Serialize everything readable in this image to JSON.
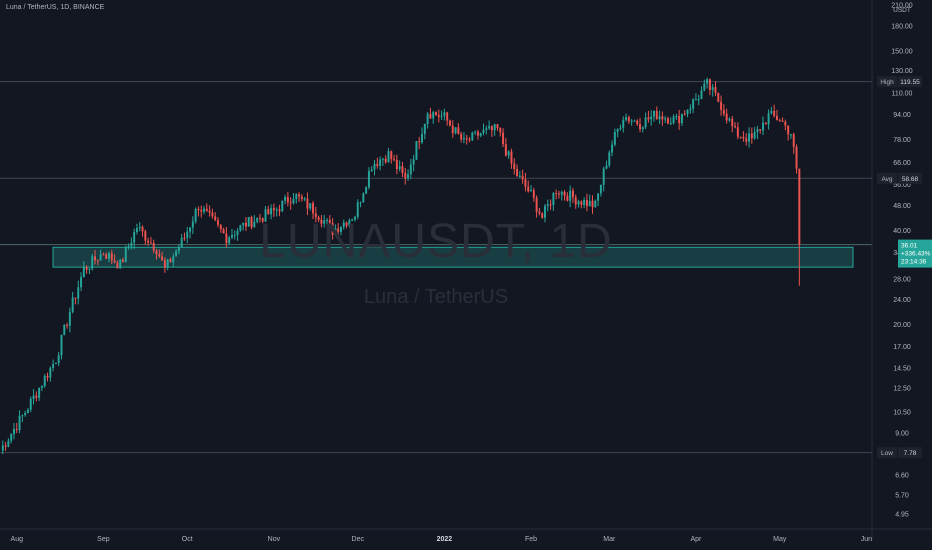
{
  "header": {
    "symbol_line": "Luna / TetherUS, 1D, BINANCE"
  },
  "watermark": {
    "ticker": "LUNAUSDT, 1D",
    "name": "Luna / TetherUS"
  },
  "price_axis": {
    "currency": "USDT",
    "ticks": [
      "210.00",
      "180.00",
      "150.00",
      "130.00",
      "110.00",
      "94.00",
      "78.00",
      "66.00",
      "56.00",
      "48.00",
      "40.00",
      "34.00",
      "28.00",
      "24.00",
      "20.00",
      "17.00",
      "14.50",
      "12.50",
      "10.50",
      "9.00",
      "6.60",
      "5.70",
      "4.95"
    ]
  },
  "time_axis": {
    "labels": [
      {
        "text": "Aug"
      },
      {
        "text": "Sep"
      },
      {
        "text": "Oct"
      },
      {
        "text": "Nov"
      },
      {
        "text": "Dec"
      },
      {
        "text": "2022",
        "bold": true
      },
      {
        "text": "Feb"
      },
      {
        "text": "Mar"
      },
      {
        "text": "Apr"
      },
      {
        "text": "May"
      },
      {
        "text": "Jun"
      }
    ]
  },
  "markers": {
    "high": {
      "label": "High",
      "value": "119.55"
    },
    "avg": {
      "label": "Avg",
      "value": "58.68"
    },
    "low": {
      "label": "Low",
      "value": "7.78"
    },
    "last": {
      "price": "36.01",
      "change": "+336.43%",
      "countdown": "23:14:36"
    }
  },
  "colors": {
    "background": "#131722",
    "up": "#26a69a",
    "down": "#ef5350",
    "zone": "#26a69a",
    "line": "#434651",
    "text": "#b2b5be",
    "label_bg": "#1e222d"
  },
  "chart_data": {
    "type": "candlestick",
    "symbol": "LUNAUSDT",
    "interval": "1D",
    "exchange": "BINANCE",
    "x_range": [
      "2021-07-26",
      "2022-06-03"
    ],
    "y_scale": "log",
    "y_range": [
      4.4,
      215
    ],
    "support_zone": [
      30.5,
      35.3
    ],
    "high": 119.55,
    "avg": 58.68,
    "low": 7.78,
    "last_price": 36.01,
    "change_pct": "+336.43%",
    "anchors": [
      [
        "2021-07-26",
        7.9
      ],
      [
        "2021-08-04",
        10.5
      ],
      [
        "2021-08-10",
        13
      ],
      [
        "2021-08-15",
        15.5
      ],
      [
        "2021-08-20",
        22
      ],
      [
        "2021-08-25",
        30
      ],
      [
        "2021-09-01",
        34
      ],
      [
        "2021-09-07",
        31
      ],
      [
        "2021-09-13",
        41
      ],
      [
        "2021-09-20",
        35
      ],
      [
        "2021-09-23",
        30
      ],
      [
        "2021-09-30",
        38
      ],
      [
        "2021-10-05",
        48
      ],
      [
        "2021-10-15",
        38
      ],
      [
        "2021-10-22",
        42
      ],
      [
        "2021-11-01",
        46
      ],
      [
        "2021-11-08",
        52
      ],
      [
        "2021-11-16",
        46
      ],
      [
        "2021-11-22",
        40
      ],
      [
        "2021-11-30",
        45
      ],
      [
        "2021-12-06",
        65
      ],
      [
        "2021-12-12",
        70
      ],
      [
        "2021-12-18",
        58
      ],
      [
        "2021-12-26",
        96
      ],
      [
        "2022-01-01",
        92
      ],
      [
        "2022-01-08",
        76
      ],
      [
        "2022-01-14",
        82
      ],
      [
        "2022-01-20",
        84
      ],
      [
        "2022-01-26",
        62
      ],
      [
        "2022-02-01",
        52
      ],
      [
        "2022-02-05",
        44
      ],
      [
        "2022-02-10",
        54
      ],
      [
        "2022-02-18",
        50
      ],
      [
        "2022-02-24",
        48
      ],
      [
        "2022-03-01",
        72
      ],
      [
        "2022-03-06",
        93
      ],
      [
        "2022-03-12",
        88
      ],
      [
        "2022-03-18",
        94
      ],
      [
        "2022-03-25",
        90
      ],
      [
        "2022-04-01",
        105
      ],
      [
        "2022-04-05",
        117
      ],
      [
        "2022-04-10",
        101
      ],
      [
        "2022-04-15",
        82
      ],
      [
        "2022-04-21",
        78
      ],
      [
        "2022-04-27",
        93
      ],
      [
        "2022-05-01",
        91
      ],
      [
        "2022-05-03",
        86
      ],
      [
        "2022-05-05",
        82
      ],
      [
        "2022-05-07",
        63
      ],
      [
        "2022-05-08",
        36
      ]
    ]
  }
}
